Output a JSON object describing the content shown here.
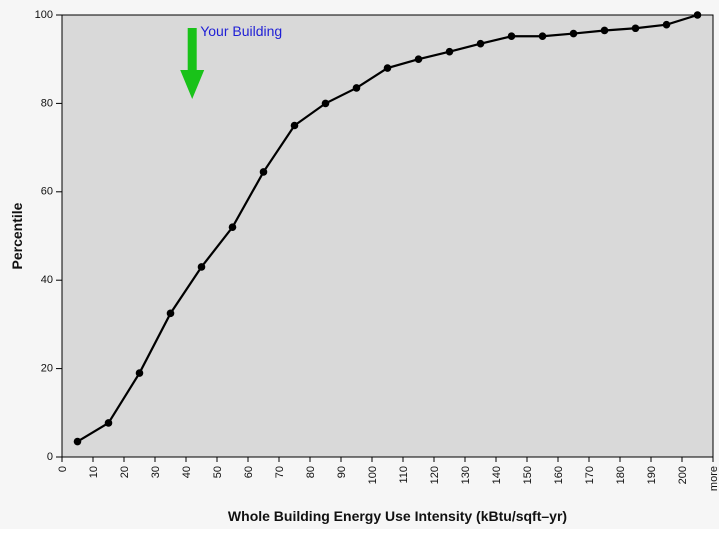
{
  "chart_data": {
    "type": "line",
    "title": "",
    "xlabel": "Whole Building Energy Use Intensity (kBtu/sqft–yr)",
    "ylabel": "Percentile",
    "categories": [
      "0",
      "10",
      "20",
      "30",
      "40",
      "50",
      "60",
      "70",
      "80",
      "90",
      "100",
      "110",
      "120",
      "130",
      "140",
      "150",
      "160",
      "170",
      "180",
      "190",
      "200",
      "more"
    ],
    "ylim": [
      0,
      100
    ],
    "yticks": [
      0,
      20,
      40,
      60,
      80,
      100
    ],
    "grid": false,
    "series": [
      {
        "name": "",
        "points": [
          {
            "x": 5,
            "y": 3.5
          },
          {
            "x": 15,
            "y": 7.7
          },
          {
            "x": 25,
            "y": 19
          },
          {
            "x": 35,
            "y": 32.5
          },
          {
            "x": 45,
            "y": 43
          },
          {
            "x": 55,
            "y": 52
          },
          {
            "x": 65,
            "y": 64.5
          },
          {
            "x": 75,
            "y": 75
          },
          {
            "x": 85,
            "y": 80
          },
          {
            "x": 95,
            "y": 83.5
          },
          {
            "x": 105,
            "y": 88
          },
          {
            "x": 115,
            "y": 90
          },
          {
            "x": 125,
            "y": 91.7
          },
          {
            "x": 135,
            "y": 93.5
          },
          {
            "x": 145,
            "y": 95.2
          },
          {
            "x": 155,
            "y": 95.2
          },
          {
            "x": 165,
            "y": 95.8
          },
          {
            "x": 175,
            "y": 96.5
          },
          {
            "x": 185,
            "y": 97
          },
          {
            "x": 195,
            "y": 97.8
          },
          {
            "x": 205,
            "y": 100
          }
        ],
        "color": "#000000"
      }
    ],
    "annotation": {
      "text": "Your Building",
      "x": 42,
      "arrow_color": "#19c219",
      "text_color": "#1f1fd6"
    },
    "plot_background": "#d9d9d9"
  }
}
